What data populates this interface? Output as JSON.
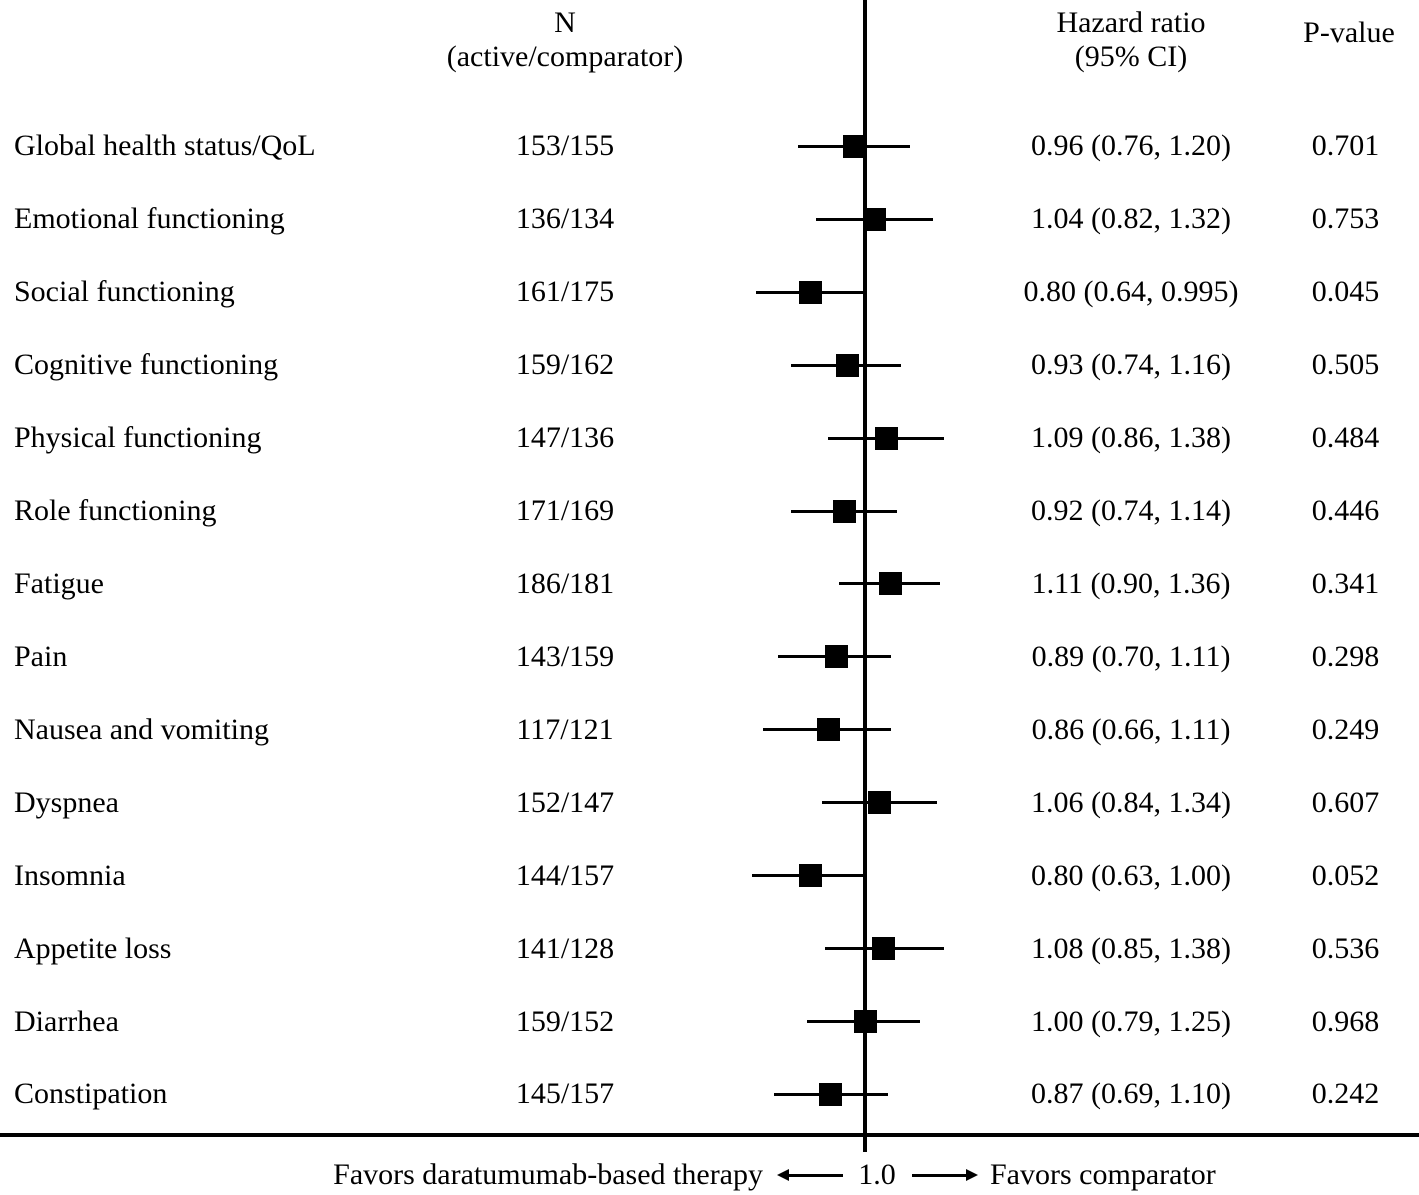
{
  "figure": {
    "columns": {
      "n_header_line1": "N",
      "n_header_line2": "(active/comparator)",
      "hr_header_line1": "Hazard ratio",
      "hr_header_line2": "(95% CI)",
      "p_header": "P-value"
    }
  },
  "chart_data": {
    "type": "scatter",
    "variant": "forest-plot-hazard-ratios",
    "title": "",
    "x_scale": "log",
    "reference_line": 1.0,
    "tick_labels": [
      "1.0"
    ],
    "marker_color": "#000000",
    "axis": {
      "ref_tick_label": "1.0",
      "favors_left": "Favors daratumumab-based therapy",
      "favors_right": "Favors comparator"
    },
    "rows": [
      {
        "label": "Global health status/QoL",
        "n": "153/155",
        "hr": 0.96,
        "ci_low": 0.76,
        "ci_high": 1.2,
        "hr_ci_text": "0.96 (0.76, 1.20)",
        "p_value": "0.701"
      },
      {
        "label": "Emotional functioning",
        "n": "136/134",
        "hr": 1.04,
        "ci_low": 0.82,
        "ci_high": 1.32,
        "hr_ci_text": "1.04 (0.82, 1.32)",
        "p_value": "0.753"
      },
      {
        "label": "Social functioning",
        "n": "161/175",
        "hr": 0.8,
        "ci_low": 0.64,
        "ci_high": 0.995,
        "hr_ci_text": "0.80 (0.64, 0.995)",
        "p_value": "0.045"
      },
      {
        "label": "Cognitive functioning",
        "n": "159/162",
        "hr": 0.93,
        "ci_low": 0.74,
        "ci_high": 1.16,
        "hr_ci_text": "0.93 (0.74, 1.16)",
        "p_value": "0.505"
      },
      {
        "label": "Physical functioning",
        "n": "147/136",
        "hr": 1.09,
        "ci_low": 0.86,
        "ci_high": 1.38,
        "hr_ci_text": "1.09 (0.86, 1.38)",
        "p_value": "0.484"
      },
      {
        "label": "Role functioning",
        "n": "171/169",
        "hr": 0.92,
        "ci_low": 0.74,
        "ci_high": 1.14,
        "hr_ci_text": "0.92 (0.74, 1.14)",
        "p_value": "0.446"
      },
      {
        "label": "Fatigue",
        "n": "186/181",
        "hr": 1.11,
        "ci_low": 0.9,
        "ci_high": 1.36,
        "hr_ci_text": "1.11 (0.90, 1.36)",
        "p_value": "0.341"
      },
      {
        "label": "Pain",
        "n": "143/159",
        "hr": 0.89,
        "ci_low": 0.7,
        "ci_high": 1.11,
        "hr_ci_text": "0.89 (0.70, 1.11)",
        "p_value": "0.298"
      },
      {
        "label": "Nausea and vomiting",
        "n": "117/121",
        "hr": 0.86,
        "ci_low": 0.66,
        "ci_high": 1.11,
        "hr_ci_text": "0.86 (0.66, 1.11)",
        "p_value": "0.249"
      },
      {
        "label": "Dyspnea",
        "n": "152/147",
        "hr": 1.06,
        "ci_low": 0.84,
        "ci_high": 1.34,
        "hr_ci_text": "1.06 (0.84, 1.34)",
        "p_value": "0.607"
      },
      {
        "label": "Insomnia",
        "n": "144/157",
        "hr": 0.8,
        "ci_low": 0.63,
        "ci_high": 1.0,
        "hr_ci_text": "0.80 (0.63, 1.00)",
        "p_value": "0.052"
      },
      {
        "label": "Appetite loss",
        "n": "141/128",
        "hr": 1.08,
        "ci_low": 0.85,
        "ci_high": 1.38,
        "hr_ci_text": "1.08 (0.85, 1.38)",
        "p_value": "0.536"
      },
      {
        "label": "Diarrhea",
        "n": "159/152",
        "hr": 1.0,
        "ci_low": 0.79,
        "ci_high": 1.25,
        "hr_ci_text": "1.00 (0.79, 1.25)",
        "p_value": "0.968"
      },
      {
        "label": "Constipation",
        "n": "145/157",
        "hr": 0.87,
        "ci_low": 0.69,
        "ci_high": 1.1,
        "hr_ci_text": "0.87 (0.69, 1.10)",
        "p_value": "0.242"
      }
    ]
  }
}
